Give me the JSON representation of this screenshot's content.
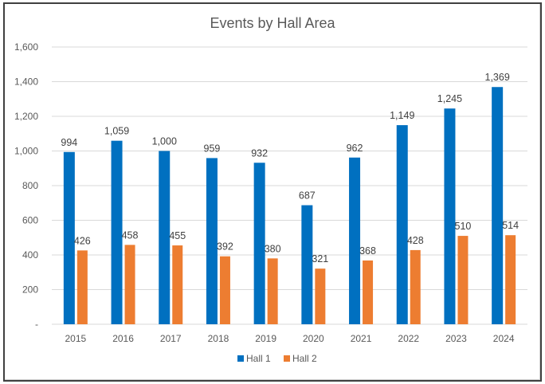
{
  "chart_data": {
    "type": "bar",
    "title": "Events by Hall Area",
    "xlabel": "",
    "ylabel": "",
    "categories": [
      "2015",
      "2016",
      "2017",
      "2018",
      "2019",
      "2020",
      "2021",
      "2022",
      "2023",
      "2024"
    ],
    "series": [
      {
        "name": "Hall 1",
        "color": "#0070C0",
        "values": [
          994,
          1059,
          1000,
          959,
          932,
          687,
          962,
          1149,
          1245,
          1369
        ],
        "labels": [
          "994",
          "1,059",
          "1,000",
          "959",
          "932",
          "687",
          "962",
          "1,149",
          "1,245",
          "1,369"
        ]
      },
      {
        "name": "Hall 2",
        "color": "#ED7D31",
        "values": [
          426,
          458,
          455,
          392,
          380,
          321,
          368,
          428,
          510,
          514
        ],
        "labels": [
          "426",
          "458",
          "455",
          "392",
          "380",
          "321",
          "368",
          "428",
          "510",
          "514"
        ]
      }
    ],
    "ylim": [
      0,
      1600
    ],
    "yticks": [
      0,
      200,
      400,
      600,
      800,
      1000,
      1200,
      1400,
      1600
    ],
    "ytick_labels": [
      "-",
      "200",
      "400",
      "600",
      "800",
      "1,000",
      "1,200",
      "1,400",
      "1,600"
    ],
    "grid": true,
    "legend": "bottom-center",
    "gridline_color": "#D9D9D9"
  }
}
